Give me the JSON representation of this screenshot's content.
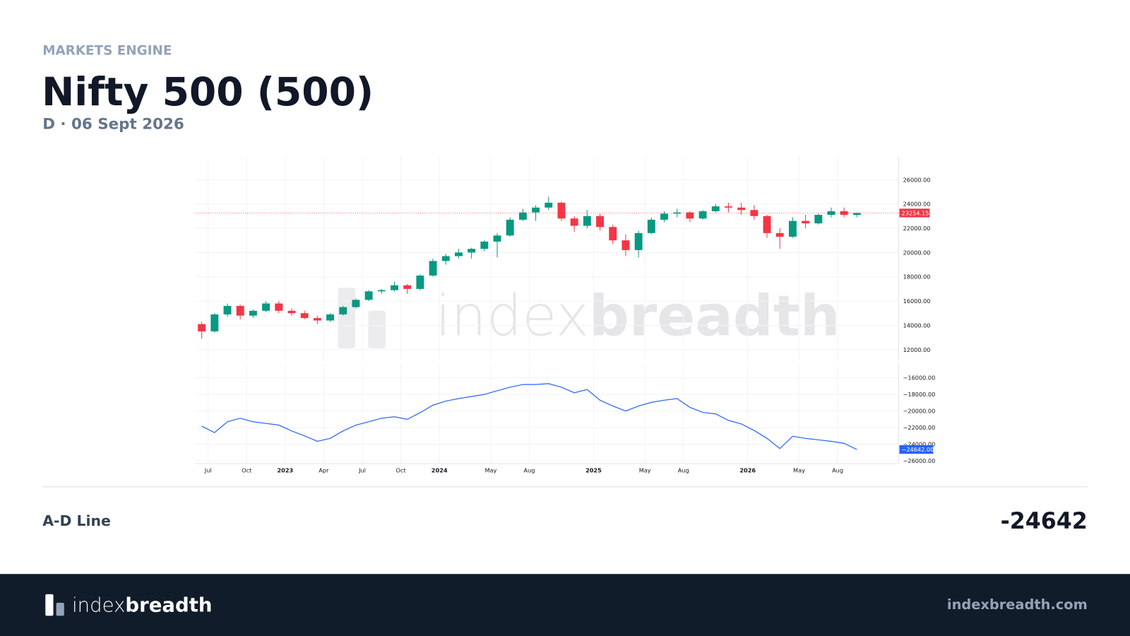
{
  "header": {
    "eyebrow": "MARKETS ENGINE",
    "title": "Nifty 500 (500)",
    "subtitle": "D · 06 Sept 2026"
  },
  "watermark": {
    "index": "index",
    "breadth": "breadth"
  },
  "summary": {
    "label": "A-D Line",
    "value": -24642
  },
  "footer": {
    "logo_index": "index",
    "logo_breadth": "breadth",
    "site": "indexbreadth.com"
  },
  "chart_data": [
    {
      "type": "candlestick",
      "up_color": "#089981",
      "down_color": "#f23645",
      "x": [
        "2022-06",
        "2022-07",
        "2022-08",
        "2022-09",
        "2022-10",
        "2022-11",
        "2022-12",
        "2023-01",
        "2023-02",
        "2023-03",
        "2023-04",
        "2023-05",
        "2023-06",
        "2023-07",
        "2023-08",
        "2023-09",
        "2023-10",
        "2023-11",
        "2023-12",
        "2024-01",
        "2024-02",
        "2024-03",
        "2024-04",
        "2024-05",
        "2024-06",
        "2024-07",
        "2024-08",
        "2024-09",
        "2024-10",
        "2024-11",
        "2024-12",
        "2025-01",
        "2025-02",
        "2025-03",
        "2025-04",
        "2025-05",
        "2025-06",
        "2025-07",
        "2025-08",
        "2025-09",
        "2025-10",
        "2025-11",
        "2025-12",
        "2026-01",
        "2026-02",
        "2026-03",
        "2026-04",
        "2026-05",
        "2026-06",
        "2026-07",
        "2026-08",
        "2026-09"
      ],
      "open": [
        14100,
        13500,
        14900,
        15600,
        14800,
        15200,
        15800,
        15200,
        15000,
        14600,
        14400,
        14900,
        15500,
        16100,
        16800,
        16900,
        17300,
        17000,
        18100,
        19300,
        19700,
        20000,
        20300,
        20900,
        21400,
        22700,
        23300,
        23700,
        24100,
        22800,
        22200,
        23000,
        22100,
        21000,
        20200,
        21600,
        22700,
        23200,
        23300,
        22800,
        23400,
        23800,
        23700,
        23500,
        23000,
        21600,
        21300,
        22600,
        22400,
        23100,
        23400,
        23100
      ],
      "high": [
        14300,
        15000,
        15800,
        15700,
        15300,
        16000,
        16000,
        15400,
        15200,
        14800,
        15000,
        15600,
        16200,
        16900,
        17000,
        17600,
        17400,
        18200,
        19500,
        19900,
        20300,
        20400,
        21000,
        21600,
        22900,
        23600,
        23900,
        24600,
        24200,
        23000,
        23500,
        23200,
        22300,
        21500,
        21800,
        22900,
        23400,
        23600,
        23400,
        23500,
        24000,
        24100,
        24100,
        23900,
        23100,
        22000,
        22900,
        23100,
        23200,
        23700,
        23700,
        23300
      ],
      "low": [
        12900,
        13400,
        14700,
        14500,
        14600,
        15100,
        15000,
        14800,
        14500,
        14100,
        14300,
        14800,
        15400,
        16000,
        16600,
        16800,
        16600,
        16900,
        18000,
        19000,
        19500,
        19500,
        20100,
        19600,
        21300,
        22600,
        22600,
        23500,
        22600,
        21700,
        22000,
        21800,
        20700,
        19700,
        19600,
        21500,
        22500,
        22900,
        22500,
        22700,
        23300,
        23300,
        23100,
        22700,
        21200,
        20300,
        21200,
        22000,
        22300,
        22900,
        22900,
        22900
      ],
      "close": [
        13500,
        14900,
        15600,
        14800,
        15200,
        15800,
        15200,
        15000,
        14600,
        14400,
        14900,
        15500,
        16100,
        16800,
        16900,
        17300,
        17000,
        18100,
        19300,
        19700,
        20000,
        20300,
        20900,
        21400,
        22700,
        23300,
        23700,
        24100,
        22800,
        22200,
        23000,
        22100,
        21000,
        20200,
        21600,
        22700,
        23200,
        23300,
        22800,
        23400,
        23800,
        23700,
        23500,
        23000,
        21600,
        21300,
        22600,
        22400,
        23100,
        23400,
        23100,
        23254.15
      ],
      "last_value": {
        "value": 23254.15,
        "label": "23254.15"
      },
      "ylim": [
        11100,
        27850
      ],
      "yticks": [
        {
          "value": 12000,
          "label": "12000.00"
        },
        {
          "value": 14000,
          "label": "14000.00"
        },
        {
          "value": 16000,
          "label": "16000.00"
        },
        {
          "value": 18000,
          "label": "18000.00"
        },
        {
          "value": 20000,
          "label": "20000.00"
        },
        {
          "value": 22000,
          "label": "22000.00"
        },
        {
          "value": 24000,
          "label": "24000.00"
        },
        {
          "value": 26000,
          "label": "26000.00"
        }
      ],
      "grid": true
    },
    {
      "type": "line",
      "color": "#2962ff",
      "x": [
        "2022-06",
        "2022-07",
        "2022-08",
        "2022-09",
        "2022-10",
        "2022-11",
        "2022-12",
        "2023-01",
        "2023-02",
        "2023-03",
        "2023-04",
        "2023-05",
        "2023-06",
        "2023-07",
        "2023-08",
        "2023-09",
        "2023-10",
        "2023-11",
        "2023-12",
        "2024-01",
        "2024-02",
        "2024-03",
        "2024-04",
        "2024-05",
        "2024-06",
        "2024-07",
        "2024-08",
        "2024-09",
        "2024-10",
        "2024-11",
        "2024-12",
        "2025-01",
        "2025-02",
        "2025-03",
        "2025-04",
        "2025-05",
        "2025-06",
        "2025-07",
        "2025-08",
        "2025-09",
        "2025-10",
        "2025-11",
        "2025-12",
        "2026-01",
        "2026-02",
        "2026-03",
        "2026-04",
        "2026-05",
        "2026-06",
        "2026-07",
        "2026-08",
        "2026-09"
      ],
      "values": [
        -21830,
        -22600,
        -21300,
        -20870,
        -21300,
        -21500,
        -21700,
        -22400,
        -23000,
        -23650,
        -23300,
        -22400,
        -21700,
        -21300,
        -20870,
        -20700,
        -21000,
        -20200,
        -19300,
        -18800,
        -18500,
        -18250,
        -18000,
        -17560,
        -17130,
        -16800,
        -16800,
        -16700,
        -17130,
        -17800,
        -17400,
        -18700,
        -19400,
        -20000,
        -19400,
        -18960,
        -18700,
        -18500,
        -19560,
        -20170,
        -20350,
        -21130,
        -21560,
        -22350,
        -23300,
        -24520,
        -23050,
        -23300,
        -23480,
        -23650,
        -23900,
        -24642
      ],
      "last_value": {
        "value": -24642,
        "label": "−24642.00"
      },
      "ylim": [
        -26350,
        -14350
      ],
      "yticks": [
        {
          "value": -16000,
          "label": "−16000.00"
        },
        {
          "value": -18000,
          "label": "−18000.00"
        },
        {
          "value": -20000,
          "label": "−20000.00"
        },
        {
          "value": -22000,
          "label": "−22000.00"
        },
        {
          "value": -24000,
          "label": "−24000.00"
        },
        {
          "value": -26000,
          "label": "−26000.00"
        }
      ],
      "xticks": [
        {
          "value": "2022-07",
          "label": "Jul"
        },
        {
          "value": "2022-10",
          "label": "Oct"
        },
        {
          "value": "2023-01",
          "label": "2023"
        },
        {
          "value": "2023-04",
          "label": "Apr"
        },
        {
          "value": "2023-07",
          "label": "Jul"
        },
        {
          "value": "2023-10",
          "label": "Oct"
        },
        {
          "value": "2024-01",
          "label": "2024"
        },
        {
          "value": "2024-05",
          "label": "May"
        },
        {
          "value": "2024-08",
          "label": "Aug"
        },
        {
          "value": "2025-01",
          "label": "2025"
        },
        {
          "value": "2025-05",
          "label": "May"
        },
        {
          "value": "2025-08",
          "label": "Aug"
        },
        {
          "value": "2026-01",
          "label": "2026"
        },
        {
          "value": "2026-05",
          "label": "May"
        },
        {
          "value": "2026-08",
          "label": "Aug"
        }
      ],
      "grid": true
    }
  ]
}
